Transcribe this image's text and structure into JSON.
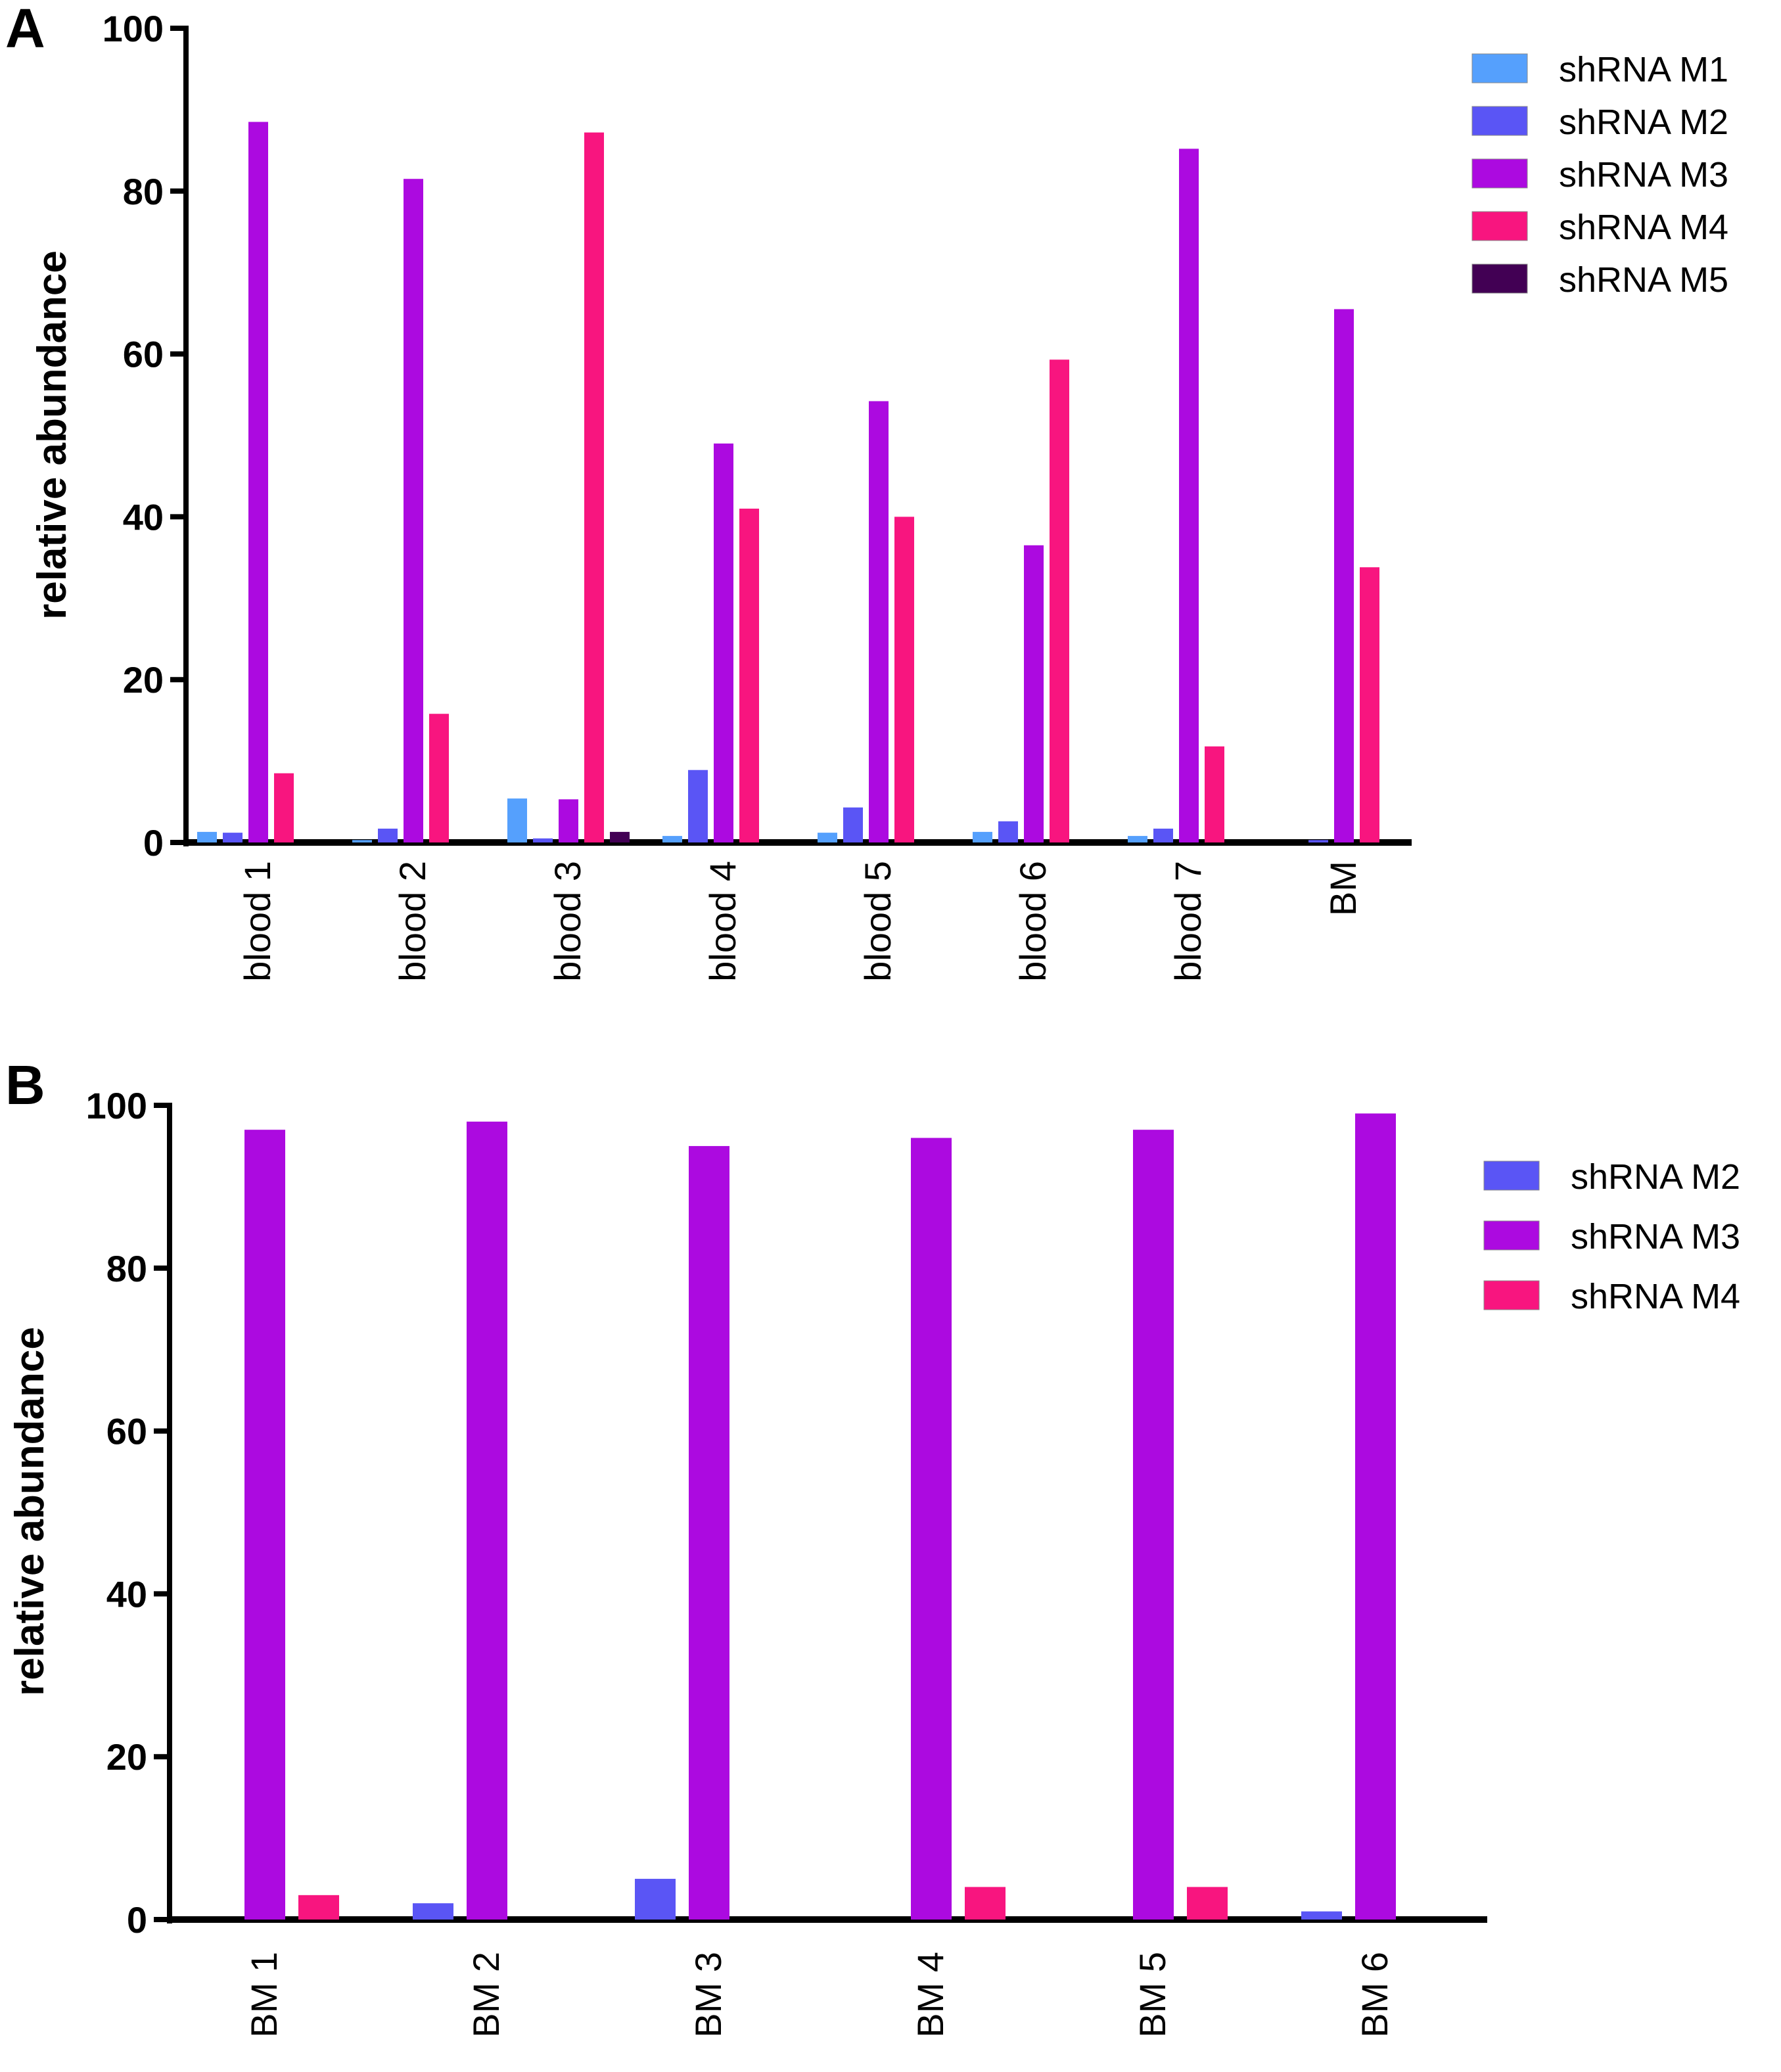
{
  "figure": {
    "panels": [
      "A",
      "B"
    ]
  },
  "chart_data": [
    {
      "type": "bar",
      "panel": "A",
      "title": "",
      "xlabel": "",
      "ylabel": "relative abundance",
      "ylim": [
        0,
        100
      ],
      "yticks": [
        0,
        20,
        40,
        60,
        80,
        100
      ],
      "grid": false,
      "legend_position": "top-right",
      "categories": [
        "blood 1",
        "blood 2",
        "blood 3",
        "blood 4",
        "blood 5",
        "blood 6",
        "blood 7",
        "BM"
      ],
      "series": [
        {
          "name": "shRNA M1",
          "color": "#55a0fd",
          "values": [
            1.3,
            0.3,
            5.4,
            0.8,
            1.2,
            1.3,
            0.8,
            0
          ]
        },
        {
          "name": "shRNA M2",
          "color": "#5a55f5",
          "values": [
            1.2,
            1.7,
            0.5,
            8.9,
            4.3,
            2.6,
            1.7,
            0.3
          ]
        },
        {
          "name": "shRNA M3",
          "color": "#ac0ae0",
          "values": [
            88.5,
            81.5,
            5.3,
            49.0,
            54.2,
            36.5,
            85.2,
            65.5
          ]
        },
        {
          "name": "shRNA M4",
          "color": "#f8157f",
          "values": [
            8.5,
            15.8,
            87.2,
            41.0,
            40.0,
            59.3,
            11.8,
            33.8
          ]
        },
        {
          "name": "shRNA M5",
          "color": "#420054",
          "values": [
            0,
            0,
            1.3,
            0,
            0,
            0,
            0,
            0
          ]
        }
      ]
    },
    {
      "type": "bar",
      "panel": "B",
      "title": "",
      "xlabel": "",
      "ylabel": "relative abundance",
      "ylim": [
        0,
        100
      ],
      "yticks": [
        0,
        20,
        40,
        60,
        80,
        100
      ],
      "grid": false,
      "legend_position": "top-right",
      "categories": [
        "BM 1",
        "BM 2",
        "BM 3",
        "BM 4",
        "BM 5",
        "BM 6"
      ],
      "series": [
        {
          "name": "shRNA M2",
          "color": "#5a55f5",
          "values": [
            0,
            2,
            5,
            0,
            0,
            1
          ]
        },
        {
          "name": "shRNA M3",
          "color": "#ac0ae0",
          "values": [
            97,
            98,
            95,
            96,
            97,
            99
          ]
        },
        {
          "name": "shRNA M4",
          "color": "#f8157f",
          "values": [
            3,
            0,
            0,
            4,
            4,
            0
          ]
        }
      ]
    }
  ]
}
